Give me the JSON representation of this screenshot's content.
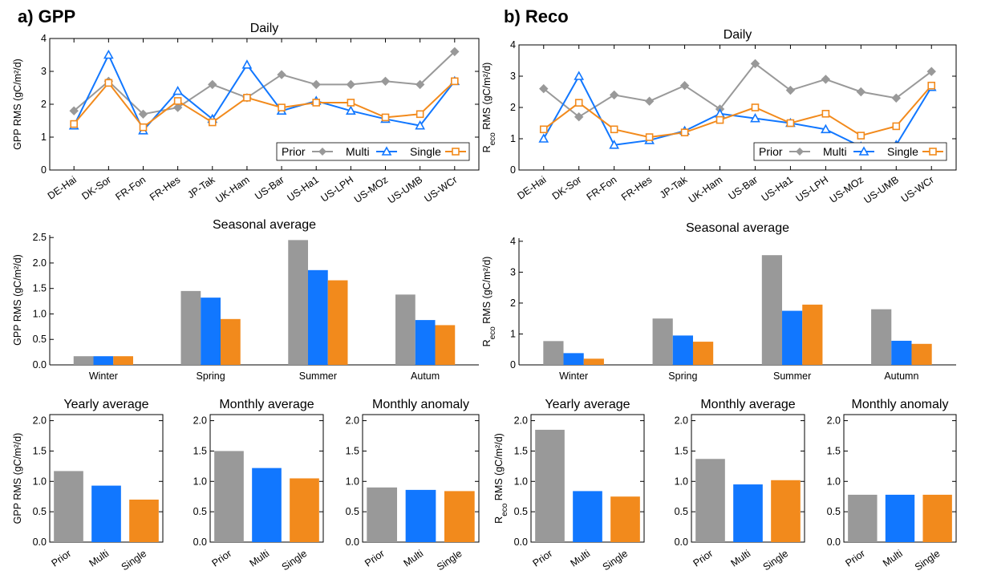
{
  "figure": {
    "panels": [
      {
        "label": "a) GPP"
      },
      {
        "label": "b) Reco"
      }
    ]
  },
  "colors": {
    "Prior": "#999999",
    "Multi": "#1177ff",
    "Single": "#f28a1c"
  },
  "chart_data": [
    {
      "id": "gpp-daily",
      "type": "line",
      "title": "Daily",
      "ylabel": "GPP RMS (gC/m²/d)",
      "ylim": [
        0,
        4
      ],
      "yticks": [
        "0",
        "1",
        "2",
        "3",
        "4"
      ],
      "legend": "bottom-right",
      "categories": [
        "DE-Hai",
        "DK-Sor",
        "FR-Fon",
        "FR-Hes",
        "JP-Tak",
        "UK-Ham",
        "US-Bar",
        "US-Ha1",
        "US-LPH",
        "US-MOz",
        "US-UMB",
        "US-WCr"
      ],
      "series": [
        {
          "name": "Prior",
          "values": [
            1.8,
            2.7,
            1.7,
            1.9,
            2.6,
            2.2,
            2.9,
            2.6,
            2.6,
            2.7,
            2.6,
            3.6
          ]
        },
        {
          "name": "Multi",
          "values": [
            1.35,
            3.5,
            1.2,
            2.4,
            1.55,
            3.2,
            1.8,
            2.1,
            1.8,
            1.55,
            1.35,
            2.7
          ]
        },
        {
          "name": "Single",
          "values": [
            1.4,
            2.65,
            1.3,
            2.1,
            1.45,
            2.2,
            1.9,
            2.05,
            2.05,
            1.6,
            1.7,
            2.7
          ]
        }
      ]
    },
    {
      "id": "reco-daily",
      "type": "line",
      "title": "Daily",
      "ylabel": "Reco RMS (gC/m²/d)",
      "ylim": [
        0,
        4
      ],
      "yticks": [
        "0",
        "1",
        "2",
        "3",
        "4"
      ],
      "legend": "bottom-right",
      "categories": [
        "DE-Hai",
        "DK-Sor",
        "FR-Fon",
        "FR-Hes",
        "JP-Tak",
        "UK-Ham",
        "US-Bar",
        "US-Ha1",
        "US-LPH",
        "US-MOz",
        "US-UMB",
        "US-WCr"
      ],
      "series": [
        {
          "name": "Prior",
          "values": [
            2.6,
            1.7,
            2.4,
            2.2,
            2.7,
            1.95,
            3.4,
            2.55,
            2.9,
            2.5,
            2.3,
            3.15
          ]
        },
        {
          "name": "Multi",
          "values": [
            1.0,
            3.0,
            0.8,
            0.95,
            1.25,
            1.8,
            1.65,
            1.5,
            1.3,
            0.75,
            0.8,
            2.65
          ]
        },
        {
          "name": "Single",
          "values": [
            1.3,
            2.15,
            1.3,
            1.05,
            1.2,
            1.6,
            2.0,
            1.5,
            1.8,
            1.1,
            1.4,
            2.7
          ]
        }
      ]
    },
    {
      "id": "gpp-seasonal",
      "type": "bar",
      "title": "Seasonal average",
      "ylabel": "GPP RMS (gC/m²/d)",
      "ylim": [
        0,
        2.55
      ],
      "yticks": [
        "0.0",
        "0.5",
        "1.0",
        "1.5",
        "2.0",
        "2.5"
      ],
      "categories": [
        "Winter",
        "Spring",
        "Summer",
        "Autum"
      ],
      "series": [
        {
          "name": "Prior",
          "values": [
            0.17,
            1.45,
            2.45,
            1.38
          ]
        },
        {
          "name": "Multi",
          "values": [
            0.17,
            1.32,
            1.86,
            0.88
          ]
        },
        {
          "name": "Single",
          "values": [
            0.17,
            0.9,
            1.66,
            0.78
          ]
        }
      ]
    },
    {
      "id": "reco-seasonal",
      "type": "bar",
      "title": "Seasonal average",
      "ylabel": "Reco RMS (gC/m²/d)",
      "ylim": [
        0,
        4.1
      ],
      "yticks": [
        "0",
        "1",
        "2",
        "3",
        "4"
      ],
      "categories": [
        "Winter",
        "Spring",
        "Summer",
        "Autumn"
      ],
      "series": [
        {
          "name": "Prior",
          "values": [
            0.77,
            1.5,
            3.55,
            1.8
          ]
        },
        {
          "name": "Multi",
          "values": [
            0.38,
            0.95,
            1.75,
            0.78
          ]
        },
        {
          "name": "Single",
          "values": [
            0.2,
            0.75,
            1.95,
            0.68
          ]
        }
      ]
    },
    {
      "id": "gpp-yearly",
      "type": "bar",
      "title": "Yearly average",
      "ylabel": "GPP RMS (gC/m²/d)",
      "ylim": [
        0,
        2.1
      ],
      "yticks": [
        "0.0",
        "0.5",
        "1.0",
        "1.5",
        "2.0"
      ],
      "categories": [
        "Prior",
        "Multi",
        "Single"
      ],
      "values": [
        1.17,
        0.93,
        0.7
      ]
    },
    {
      "id": "gpp-monthly",
      "type": "bar",
      "title": "Monthly average",
      "ylabel": "",
      "ylim": [
        0,
        2.1
      ],
      "yticks": [
        "0.0",
        "0.5",
        "1.0",
        "1.5",
        "2.0"
      ],
      "categories": [
        "Prior",
        "Multi",
        "Single"
      ],
      "values": [
        1.5,
        1.22,
        1.05
      ]
    },
    {
      "id": "gpp-anomaly",
      "type": "bar",
      "title": "Monthly anomaly",
      "ylabel": "",
      "ylim": [
        0,
        2.1
      ],
      "yticks": [
        "0.0",
        "0.5",
        "1.0",
        "1.5",
        "2.0"
      ],
      "categories": [
        "Prior",
        "Multi",
        "Single"
      ],
      "values": [
        0.9,
        0.86,
        0.84
      ]
    },
    {
      "id": "reco-yearly",
      "type": "bar",
      "title": "Yearly average",
      "ylabel": "Reco RMS (gC/m²/d)",
      "ylim": [
        0,
        2.1
      ],
      "yticks": [
        "0.0",
        "0.5",
        "1.0",
        "1.5",
        "2.0"
      ],
      "categories": [
        "Prior",
        "Multi",
        "Single"
      ],
      "values": [
        1.85,
        0.84,
        0.75
      ]
    },
    {
      "id": "reco-monthly",
      "type": "bar",
      "title": "Monthly average",
      "ylabel": "",
      "ylim": [
        0,
        2.1
      ],
      "yticks": [
        "0.0",
        "0.5",
        "1.0",
        "1.5",
        "2.0"
      ],
      "categories": [
        "Prior",
        "Multi",
        "Single"
      ],
      "values": [
        1.37,
        0.95,
        1.02
      ]
    },
    {
      "id": "reco-anomaly",
      "type": "bar",
      "title": "Monthly anomaly",
      "ylabel": "",
      "ylim": [
        0,
        2.1
      ],
      "yticks": [
        "0.0",
        "0.5",
        "1.0",
        "1.5",
        "2.0"
      ],
      "categories": [
        "Prior",
        "Multi",
        "Single"
      ],
      "values": [
        0.78,
        0.78,
        0.78
      ]
    }
  ]
}
